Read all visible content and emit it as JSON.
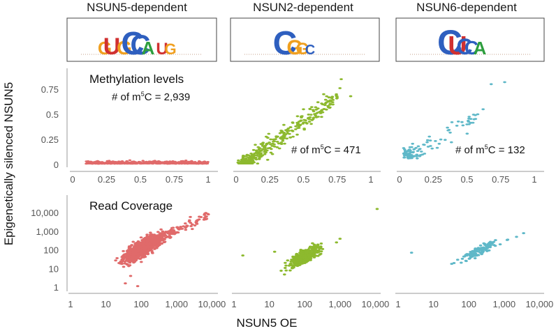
{
  "y_axis_label": "Epigenetically silenced NSUN5",
  "x_axis_label": "NSUN5 OE",
  "colors": {
    "nsun5": "#e06a6a",
    "nsun2": "#8db92e",
    "nsun6": "#5fb8c8"
  },
  "columns": [
    {
      "title": "NSUN5-dependent",
      "motif": [
        "G",
        "U",
        "G",
        "C",
        "C",
        "A",
        "U",
        "G"
      ]
    },
    {
      "title": "NSUN2-dependent",
      "motif": [
        "C",
        "G",
        "G",
        "C"
      ]
    },
    {
      "title": "NSUN6-dependent",
      "motif": [
        "C",
        "U",
        "C",
        "C",
        "A"
      ]
    }
  ],
  "annotations": {
    "methylation_title": "Methylation levels",
    "coverage_title": "Read Coverage",
    "count_prefix": "# of m",
    "count_sup": "5",
    "count_suffix": "C = ",
    "counts": [
      "2,939",
      "471",
      "132"
    ]
  },
  "chart_data": [
    {
      "type": "scatter",
      "panel": "methylation",
      "group": "NSUN5-dependent",
      "xlim": [
        0,
        1
      ],
      "ylim": [
        0,
        0.85
      ],
      "xticks": [
        "0",
        "0.25",
        "0.5",
        "0.75",
        "1"
      ],
      "yticks": [
        "0",
        "0.25",
        "0.5",
        "0.75"
      ],
      "n_sites": 2939,
      "sample_points": [
        [
          0.1,
          0.01
        ],
        [
          0.15,
          0.02
        ],
        [
          0.2,
          0.03
        ],
        [
          0.25,
          0.01
        ],
        [
          0.3,
          0.02
        ],
        [
          0.4,
          0.01
        ],
        [
          0.5,
          0.02
        ],
        [
          0.6,
          0.01
        ],
        [
          0.75,
          0.02
        ],
        [
          0.85,
          0.03
        ],
        [
          0.95,
          0.01
        ]
      ]
    },
    {
      "type": "scatter",
      "panel": "methylation",
      "group": "NSUN2-dependent",
      "xlim": [
        0,
        1
      ],
      "ylim": [
        0,
        0.85
      ],
      "xticks": [
        "0",
        "0.25",
        "0.5",
        "0.75",
        "1"
      ],
      "n_sites": 471,
      "sample_points": [
        [
          0.05,
          0.05
        ],
        [
          0.1,
          0.1
        ],
        [
          0.15,
          0.2
        ],
        [
          0.25,
          0.3
        ],
        [
          0.35,
          0.4
        ],
        [
          0.45,
          0.5
        ],
        [
          0.5,
          0.55
        ],
        [
          0.6,
          0.65
        ],
        [
          0.7,
          0.75
        ],
        [
          0.75,
          0.8
        ],
        [
          0.8,
          0.68
        ]
      ]
    },
    {
      "type": "scatter",
      "panel": "methylation",
      "group": "NSUN6-dependent",
      "xlim": [
        0,
        1
      ],
      "ylim": [
        0,
        0.85
      ],
      "xticks": [
        "0",
        "0.25",
        "0.5",
        "0.75",
        "1"
      ],
      "n_sites": 132,
      "sample_points": [
        [
          0.05,
          0.05
        ],
        [
          0.1,
          0.1
        ],
        [
          0.15,
          0.12
        ],
        [
          0.25,
          0.2
        ],
        [
          0.3,
          0.35
        ],
        [
          0.35,
          0.3
        ],
        [
          0.4,
          0.38
        ],
        [
          0.55,
          0.45
        ],
        [
          0.6,
          0.55
        ],
        [
          0.7,
          0.78
        ],
        [
          0.8,
          0.82
        ]
      ]
    },
    {
      "type": "scatter",
      "panel": "coverage",
      "group": "NSUN5-dependent",
      "xscale": "log",
      "yscale": "log",
      "xlim": [
        1,
        15000
      ],
      "ylim": [
        1,
        20000
      ],
      "xticks": [
        "1",
        "10",
        "100",
        "1,000",
        "10,000"
      ],
      "yticks": [
        "1",
        "10",
        "100",
        "1,000",
        "10,000"
      ],
      "sample_points": [
        [
          40,
          10
        ],
        [
          60,
          30
        ],
        [
          100,
          100
        ],
        [
          200,
          200
        ],
        [
          500,
          600
        ],
        [
          1000,
          1500
        ],
        [
          3000,
          5000
        ],
        [
          8000,
          10000
        ]
      ]
    },
    {
      "type": "scatter",
      "panel": "coverage",
      "group": "NSUN2-dependent",
      "xscale": "log",
      "yscale": "log",
      "xlim": [
        1,
        15000
      ],
      "ylim": [
        1,
        20000
      ],
      "xticks": [
        "1",
        "10",
        "100",
        "1,000",
        "10,000"
      ],
      "sample_points": [
        [
          2,
          50
        ],
        [
          15,
          80
        ],
        [
          30,
          20
        ],
        [
          60,
          30
        ],
        [
          100,
          60
        ],
        [
          300,
          150
        ],
        [
          1000,
          300
        ],
        [
          3000,
          1000
        ],
        [
          12000,
          15000
        ]
      ]
    },
    {
      "type": "scatter",
      "panel": "coverage",
      "group": "NSUN6-dependent",
      "xscale": "log",
      "yscale": "log",
      "xlim": [
        1,
        15000
      ],
      "ylim": [
        1,
        20000
      ],
      "xticks": [
        "1",
        "10",
        "100",
        "1,000",
        "10,000"
      ],
      "sample_points": [
        [
          2,
          80
        ],
        [
          40,
          40
        ],
        [
          80,
          60
        ],
        [
          150,
          100
        ],
        [
          300,
          150
        ],
        [
          600,
          300
        ],
        [
          1500,
          600
        ],
        [
          3500,
          1200
        ]
      ]
    }
  ]
}
